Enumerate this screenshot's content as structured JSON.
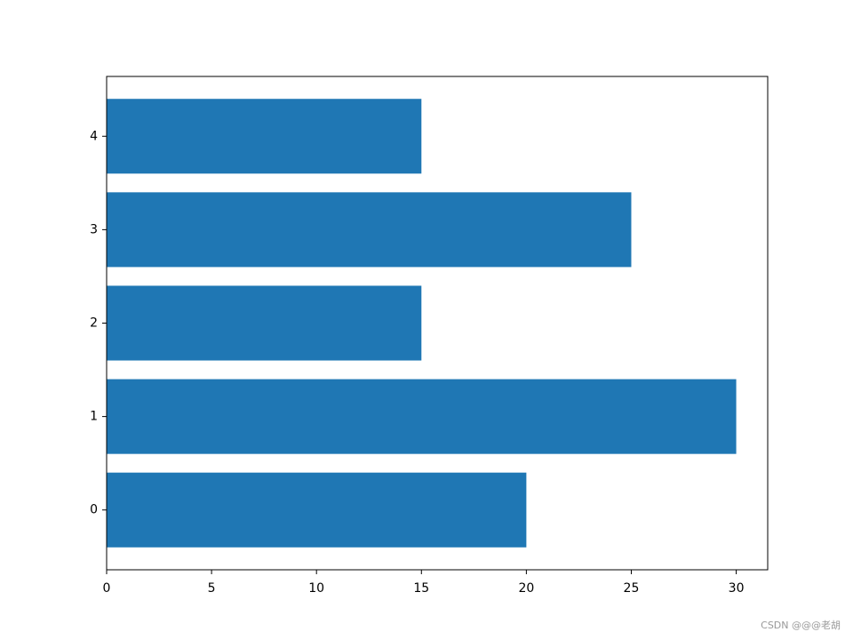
{
  "chart_data": {
    "type": "bar",
    "orientation": "horizontal",
    "categories": [
      "0",
      "1",
      "2",
      "3",
      "4"
    ],
    "values": [
      20,
      30,
      15,
      25,
      15
    ],
    "color": "#1f77b4",
    "xlim": [
      0,
      31.5
    ],
    "xticks": [
      0,
      5,
      10,
      15,
      20,
      25,
      30
    ],
    "ylim": [
      -0.64,
      4.64
    ],
    "grid": false
  },
  "watermark": "CSDN @@@老胡"
}
